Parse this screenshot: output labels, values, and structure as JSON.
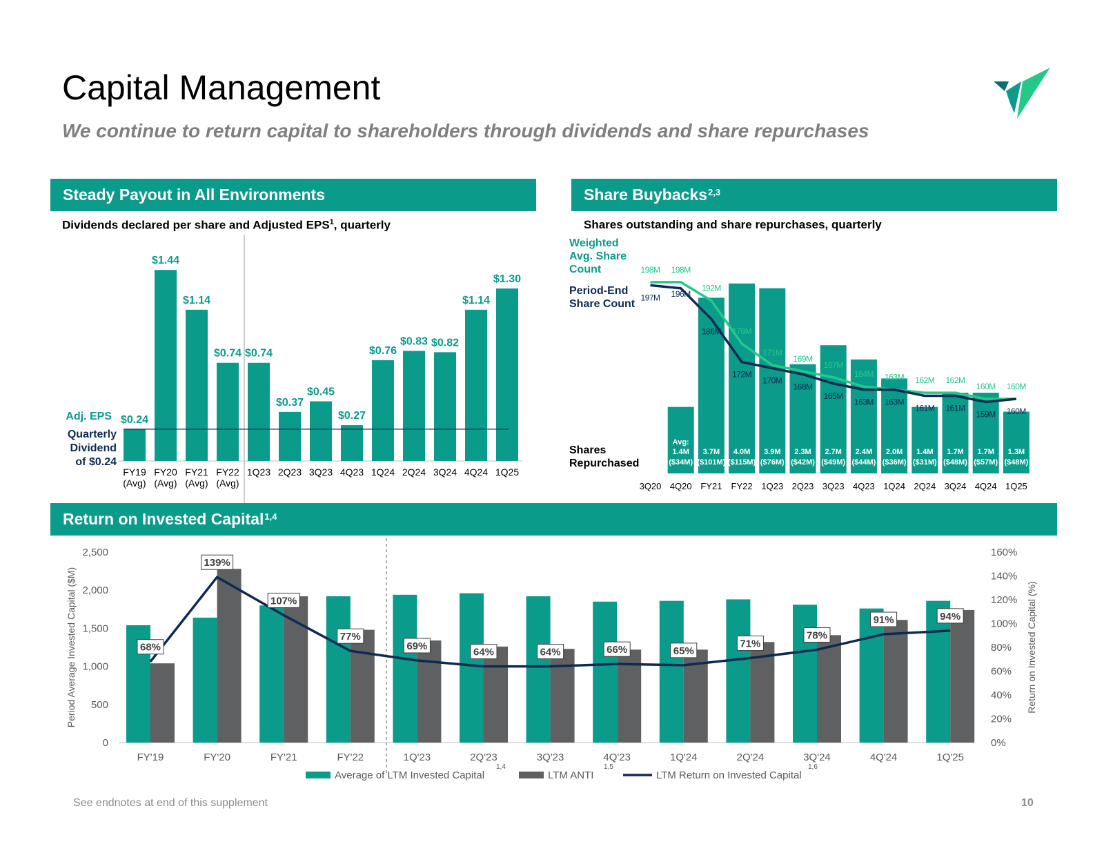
{
  "page": {
    "title": "Capital Management",
    "subtitle": "We continue to return capital to shareholders through dividends and share repurchases",
    "footnote": "See endnotes at end of this supplement",
    "page_number": "10",
    "colors": {
      "teal": "#0a9b8a",
      "light_green": "#24c98a",
      "navy": "#0d2a52",
      "gray": "#5f6062",
      "logo_dark": "#0d6e6a"
    }
  },
  "logo": {
    "icon": "check-mark-logo-icon"
  },
  "dividend_panel": {
    "banner": "Steady Payout in All Environments",
    "subtitle": "Dividends declared per share and Adjusted EPS",
    "subtitle_sup": "1",
    "subtitle_suffix": ", quarterly",
    "legend_eps": "Adj. EPS",
    "legend_dividend_lines": [
      "Quarterly",
      "Dividend",
      "of $0.24"
    ]
  },
  "buyback_panel": {
    "banner": "Share Buybacks",
    "banner_sup": "2,3",
    "subtitle": "Shares outstanding and share repurchases, quarterly",
    "legend_weighted_lines": [
      "Weighted",
      "Avg. Share",
      "Count"
    ],
    "legend_period_end_lines": [
      "Period-End",
      "Share Count"
    ],
    "legend_repurchased_lines": [
      "Shares",
      "Repurchased"
    ]
  },
  "roic_panel": {
    "banner": "Return on Invested Capital",
    "banner_sup": "1,4",
    "legend": [
      {
        "label": "Average of LTM Invested Capital",
        "sup": "1,4"
      },
      {
        "label": "LTM ANTI",
        "sup": "1,5"
      },
      {
        "label": "LTM Return on Invested Capital",
        "sup": "1,6"
      }
    ]
  },
  "chart_data": [
    {
      "type": "bar",
      "title": "Dividends declared per share and Adjusted EPS, quarterly",
      "categories": [
        "FY19 (Avg)",
        "FY20 (Avg)",
        "FY21 (Avg)",
        "FY22 (Avg)",
        "1Q23",
        "2Q23",
        "3Q23",
        "4Q23",
        "1Q24",
        "2Q24",
        "3Q24",
        "4Q24",
        "1Q25"
      ],
      "category_lines": [
        [
          "FY19",
          "(Avg)"
        ],
        [
          "FY20",
          "(Avg)"
        ],
        [
          "FY21",
          "(Avg)"
        ],
        [
          "FY22",
          "(Avg)"
        ],
        [
          "1Q23"
        ],
        [
          "2Q23"
        ],
        [
          "3Q23"
        ],
        [
          "4Q23"
        ],
        [
          "1Q24"
        ],
        [
          "2Q24"
        ],
        [
          "3Q24"
        ],
        [
          "4Q24"
        ],
        [
          "1Q25"
        ]
      ],
      "series": [
        {
          "name": "Adj. EPS",
          "values": [
            0.24,
            1.44,
            1.14,
            0.74,
            0.74,
            0.37,
            0.45,
            0.27,
            0.76,
            0.83,
            0.82,
            1.14,
            1.3
          ]
        }
      ],
      "data_labels": [
        "$0.24",
        "$1.44",
        "$1.14",
        "$0.74",
        "$0.74",
        "$0.37",
        "$0.45",
        "$0.27",
        "$0.76",
        "$0.83",
        "$0.82",
        "$1.14",
        "$1.30"
      ],
      "reference_line": {
        "name": "Quarterly Dividend of $0.24",
        "value": 0.24
      },
      "ylim": [
        0,
        1.55
      ]
    },
    {
      "type": "bar",
      "title": "Shares outstanding and share repurchases, quarterly",
      "categories": [
        "3Q20",
        "4Q20",
        "FY21",
        "FY22",
        "1Q23",
        "2Q23",
        "3Q23",
        "4Q23",
        "1Q24",
        "2Q24",
        "3Q24",
        "4Q24",
        "1Q25"
      ],
      "series": [
        {
          "name": "Shares Repurchased (M)",
          "type": "bar",
          "values": [
            null,
            1.4,
            3.7,
            4.0,
            3.9,
            2.3,
            2.7,
            2.4,
            2.0,
            1.4,
            1.7,
            1.7,
            1.3
          ],
          "labels_line1": [
            "",
            "1.4M",
            "3.7M",
            "4.0M",
            "3.9M",
            "2.3M",
            "2.7M",
            "2.4M",
            "2.0M",
            "1.4M",
            "1.7M",
            "1.7M",
            "1.3M"
          ],
          "labels_line2": [
            "",
            "($34M)",
            "($101M)",
            "($115M)",
            "($76M)",
            "($42M)",
            "($49M)",
            "($44M)",
            "($36M)",
            "($31M)",
            "($48M)",
            "($57M)",
            "($48M)"
          ],
          "prefix_4q20": "Avg:"
        },
        {
          "name": "Weighted Avg. Share Count (M)",
          "type": "line",
          "values": [
            198,
            198,
            192,
            178,
            171,
            169,
            167,
            164,
            163,
            162,
            162,
            160,
            160
          ],
          "labels": [
            "198M",
            "198M",
            "192M",
            "178M",
            "171M",
            "169M",
            "167M",
            "164M",
            "163M",
            "162M",
            "162M",
            "160M",
            "160M"
          ]
        },
        {
          "name": "Period-End Share Count (M)",
          "type": "line",
          "values": [
            197,
            196,
            186,
            172,
            170,
            168,
            165,
            163,
            163,
            161,
            161,
            159,
            160
          ],
          "labels": [
            "197M",
            "196M",
            "186M",
            "172M",
            "170M",
            "168M",
            "165M",
            "163M",
            "163M",
            "161M",
            "161M",
            "159M",
            "160M"
          ]
        }
      ],
      "ylim_shares": [
        150,
        200
      ],
      "ylim_repurchased": [
        0,
        4.2
      ]
    },
    {
      "type": "bar",
      "title": "Return on Invested Capital",
      "categories": [
        "FY'19",
        "FY'20",
        "FY'21",
        "FY'22",
        "1Q'23",
        "2Q'23",
        "3Q'23",
        "4Q'23",
        "1Q'24",
        "2Q'24",
        "3Q'24",
        "4Q'24",
        "1Q'25"
      ],
      "series": [
        {
          "name": "Average of LTM Invested Capital",
          "type": "bar",
          "values": [
            1540,
            1640,
            1800,
            1920,
            1940,
            1960,
            1920,
            1850,
            1860,
            1880,
            1810,
            1760,
            1860
          ]
        },
        {
          "name": "LTM ANTI",
          "type": "bar",
          "values": [
            1040,
            2280,
            1920,
            1480,
            1340,
            1260,
            1230,
            1220,
            1220,
            1320,
            1410,
            1610,
            1740
          ]
        },
        {
          "name": "LTM Return on Invested Capital",
          "type": "line",
          "axis": "right",
          "values": [
            68,
            139,
            107,
            77,
            69,
            64,
            64,
            66,
            65,
            71,
            78,
            91,
            94
          ],
          "labels": [
            "68%",
            "139%",
            "107%",
            "77%",
            "69%",
            "64%",
            "64%",
            "66%",
            "65%",
            "71%",
            "78%",
            "91%",
            "94%"
          ]
        }
      ],
      "ylabel": "Period Average Invested Capital ($M)",
      "y2label": "Return on Invested Capital (%)",
      "ylim": [
        0,
        2500
      ],
      "y2lim": [
        0,
        160
      ],
      "yticks": [
        "0",
        "500",
        "1,000",
        "1,500",
        "2,000",
        "2,500"
      ],
      "y2ticks": [
        "0%",
        "20%",
        "40%",
        "60%",
        "80%",
        "100%",
        "120%",
        "140%",
        "160%"
      ]
    }
  ]
}
